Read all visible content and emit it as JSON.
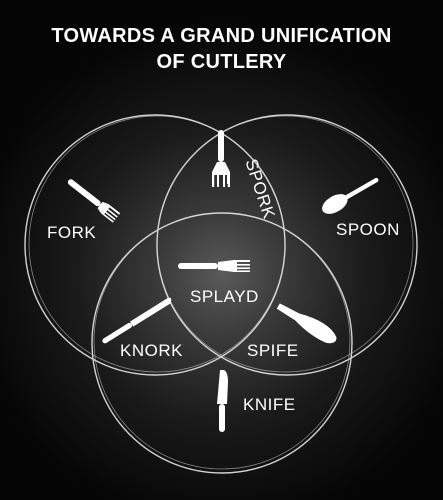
{
  "title": {
    "line1": "TOWARDS A GRAND UNIFICATION",
    "line2": "OF CUTLERY"
  },
  "regions": {
    "fork": "FORK",
    "spork": "SPORK",
    "spoon": "SPOON",
    "splayd": "SPLAYD",
    "knork": "KNORK",
    "spife": "SPIFE",
    "knife": "KNIFE"
  },
  "colors": {
    "background": "#050505",
    "foreground": "#ffffff"
  }
}
